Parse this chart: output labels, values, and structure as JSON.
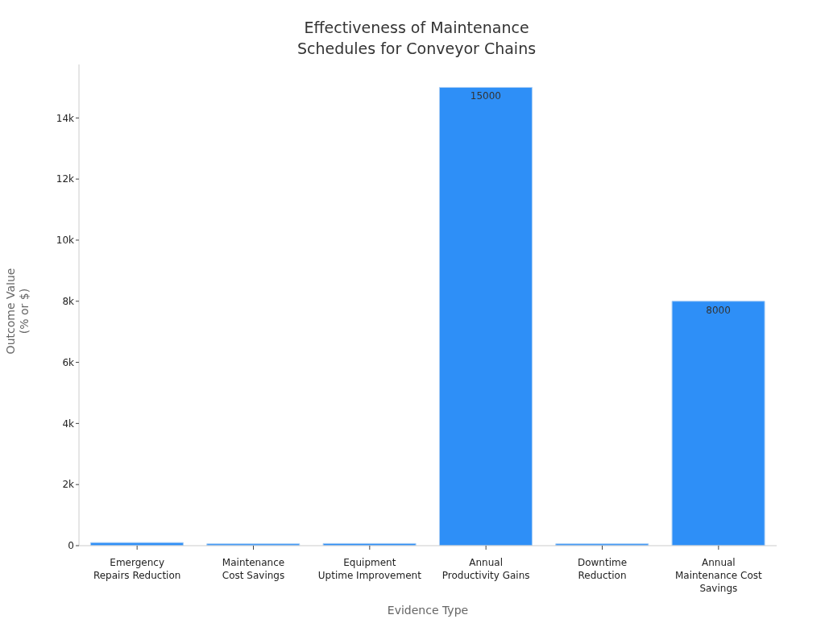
{
  "chart_data": {
    "type": "bar",
    "title": "Effectiveness of Maintenance\nSchedules for Conveyor Chains",
    "xlabel": "Evidence Type",
    "ylabel": "Outcome Value\n(% or $)",
    "categories": [
      "Emergency\nRepairs Reduction",
      "Maintenance\nCost Savings",
      "Equipment\nUptime Improvement",
      "Annual\nProductivity Gains",
      "Downtime\nReduction",
      "Annual\nMaintenance Cost\nSavings"
    ],
    "values": [
      100,
      60,
      70,
      15000,
      60,
      8000
    ],
    "value_labels": [
      null,
      null,
      null,
      "15000",
      null,
      "8000"
    ],
    "color": "#2e8ff7",
    "ylim": [
      0,
      15750
    ],
    "yticks": [
      0,
      {
        "value": 2000,
        "label": "2k"
      },
      {
        "value": 4000,
        "label": "4k"
      },
      {
        "value": 6000,
        "label": "6k"
      },
      {
        "value": 8000,
        "label": "8k"
      },
      {
        "value": 10000,
        "label": "10k"
      },
      {
        "value": 12000,
        "label": "12k"
      },
      {
        "value": 14000,
        "label": "14k"
      }
    ],
    "grid": false
  }
}
